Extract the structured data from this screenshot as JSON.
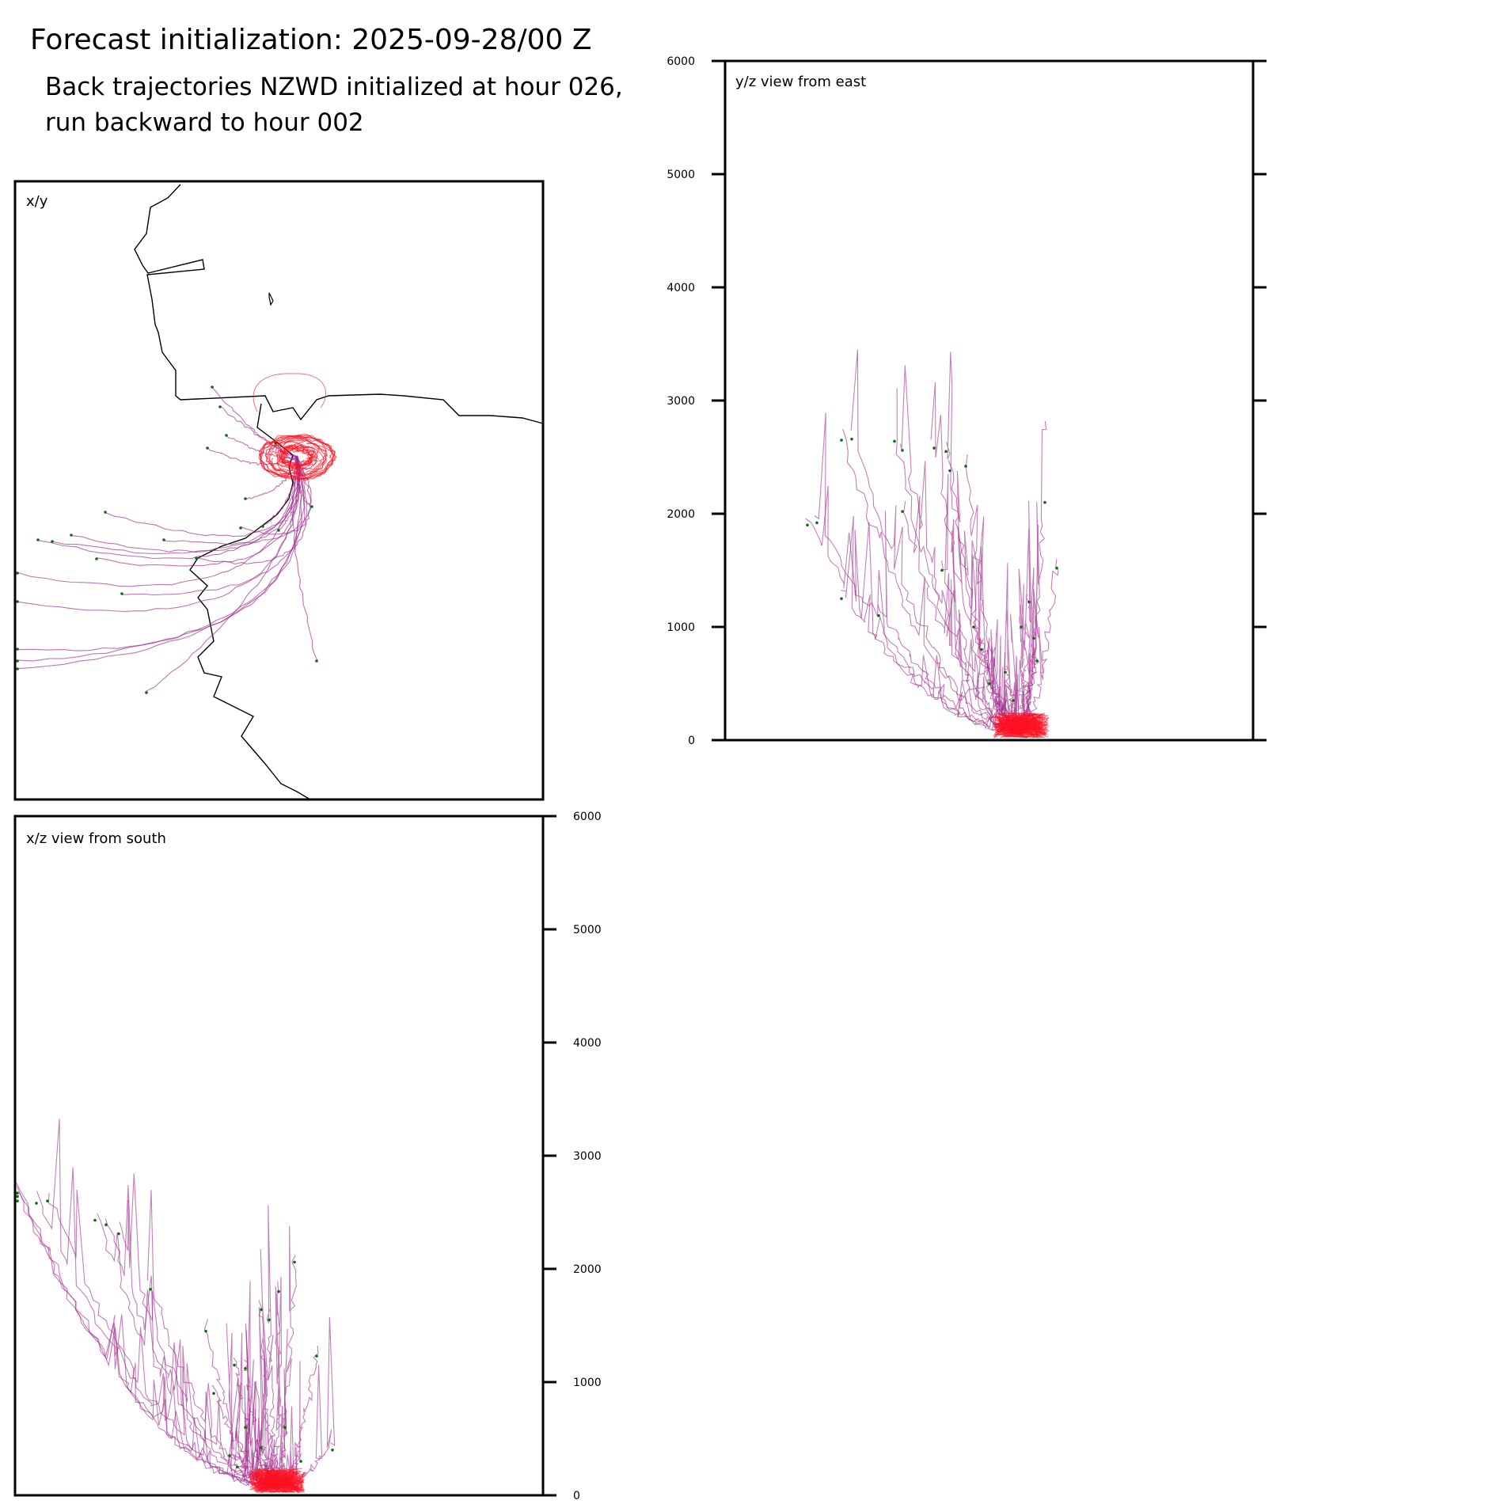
{
  "title": "Forecast initialization: 2025-09-28/00 Z",
  "subtitle": "Back trajectories NZWD initialized at hour 026, run backward to hour 002",
  "colors": {
    "frame": "#000000",
    "trajectory": "#a0288c",
    "near_origin": "#ff1020",
    "endpoint": "#0a6e0a",
    "coast": "#000000"
  },
  "chart_data": [
    {
      "type": "line",
      "panel": "x/y",
      "label": "x/y",
      "ticks": [],
      "note": "map view (plan view) of back trajectories over coastline"
    },
    {
      "type": "line",
      "panel": "y/z",
      "label": "y/z view from east",
      "ylim": [
        0,
        6000
      ],
      "yticks": [
        0,
        1000,
        2000,
        3000,
        4000,
        5000,
        6000
      ],
      "ytick_labels": [
        "0",
        "1000",
        "2000",
        "3000",
        "4000",
        "5000",
        "6000"
      ],
      "ytick_side": "left"
    },
    {
      "type": "line",
      "panel": "x/z",
      "label": "x/z view from south",
      "ylim": [
        0,
        6000
      ],
      "yticks": [
        0,
        1000,
        2000,
        3000,
        4000,
        5000,
        6000
      ],
      "ytick_labels": [
        "0",
        "1000",
        "2000",
        "3000",
        "4000",
        "5000",
        "6000"
      ],
      "ytick_side": "right"
    }
  ]
}
